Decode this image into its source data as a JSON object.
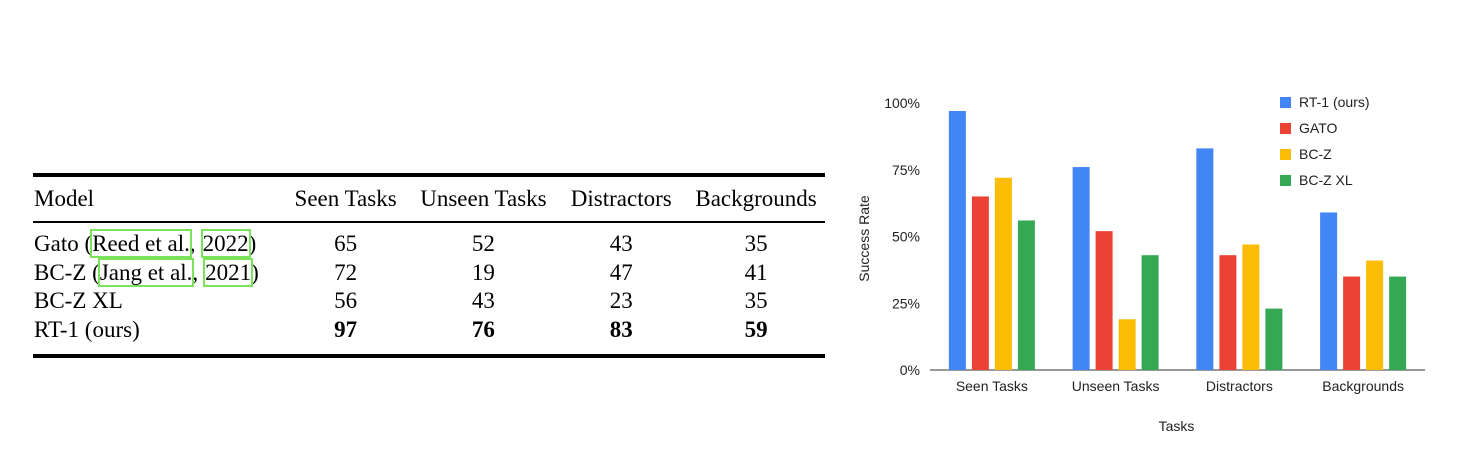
{
  "table": {
    "headers": [
      "Model",
      "Seen Tasks",
      "Unseen Tasks",
      "Distractors",
      "Backgrounds"
    ],
    "rows": [
      {
        "model_prefix": "Gato (",
        "cite_author": "Reed et al.",
        "cite_sep": ",",
        "cite_year": "2022",
        "model_suffix": ")",
        "values": [
          "65",
          "52",
          "43",
          "35"
        ],
        "bold": false
      },
      {
        "model_prefix": "BC-Z (",
        "cite_author": "Jang et al.",
        "cite_sep": ",",
        "cite_year": "2021",
        "model_suffix": ")",
        "values": [
          "72",
          "19",
          "47",
          "41"
        ],
        "bold": false
      },
      {
        "model": "BC-Z XL",
        "values": [
          "56",
          "43",
          "23",
          "35"
        ],
        "bold": false
      },
      {
        "model": "RT-1 (ours)",
        "values": [
          "97",
          "76",
          "83",
          "59"
        ],
        "bold": true
      }
    ]
  },
  "chart_data": {
    "type": "bar",
    "title": "",
    "xlabel": "Tasks",
    "ylabel": "Success Rate",
    "categories": [
      "Seen Tasks",
      "Unseen Tasks",
      "Distractors",
      "Backgrounds"
    ],
    "ylim": [
      0,
      100
    ],
    "yticks": [
      "0%",
      "25%",
      "50%",
      "75%",
      "100%"
    ],
    "ytick_values": [
      0,
      25,
      50,
      75,
      100
    ],
    "legend_position": "top-right",
    "series": [
      {
        "name": "RT-1 (ours)",
        "color": "#4285f4",
        "values": [
          97,
          76,
          83,
          59
        ]
      },
      {
        "name": "GATO",
        "color": "#ea4335",
        "values": [
          65,
          52,
          43,
          35
        ]
      },
      {
        "name": "BC-Z",
        "color": "#fbbc04",
        "values": [
          72,
          19,
          47,
          41
        ]
      },
      {
        "name": "BC-Z XL",
        "color": "#34a853",
        "values": [
          56,
          43,
          23,
          35
        ]
      }
    ]
  }
}
